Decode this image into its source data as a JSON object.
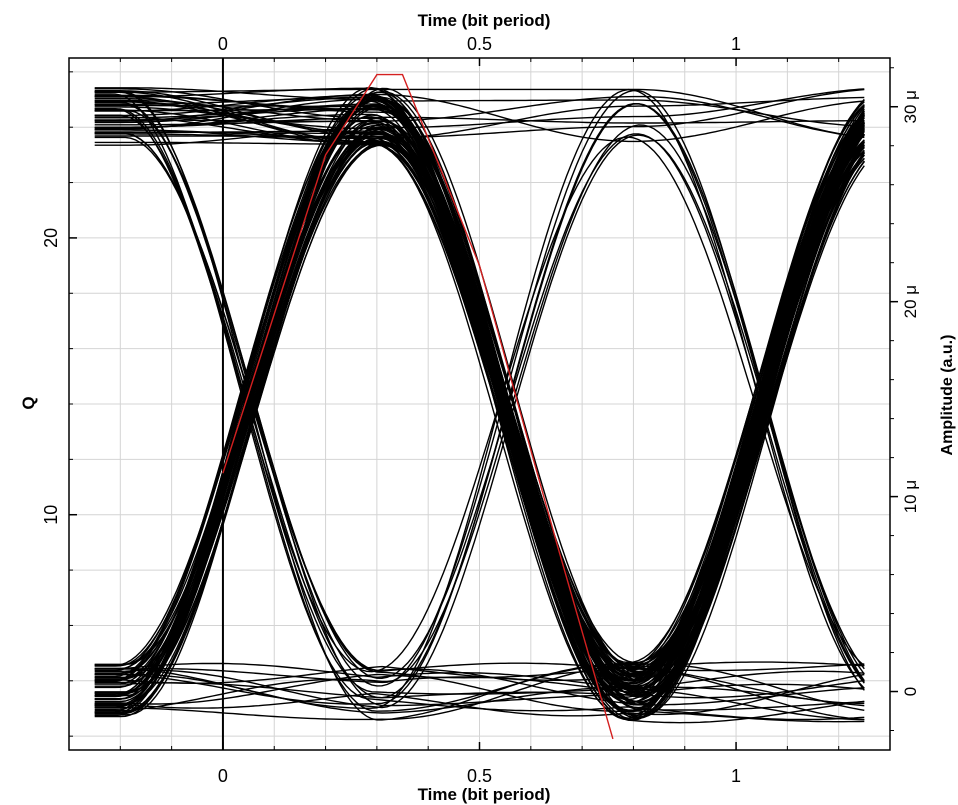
{
  "chart_data": {
    "type": "line",
    "title": "",
    "xlabel_bottom": "Time (bit period)",
    "xlabel_top": "Time (bit period)",
    "ylabel_left": "Q",
    "ylabel_right": "Amplitude (a.u.)",
    "xlim": [
      -0.3,
      1.3
    ],
    "ylim_left": [
      1.5,
      26.5
    ],
    "ylim_right": [
      -3.0,
      32.5
    ],
    "x_ticks": [
      {
        "value": 0,
        "label": "0"
      },
      {
        "value": 0.5,
        "label": "0.5"
      },
      {
        "value": 1,
        "label": "1"
      }
    ],
    "y_left_ticks": [
      {
        "value": 10,
        "label": "10"
      },
      {
        "value": 20,
        "label": "20"
      }
    ],
    "y_right_ticks": [
      {
        "value": 0,
        "label": "0"
      },
      {
        "value": 10,
        "label": "10 μ"
      },
      {
        "value": 20,
        "label": "20 μ"
      },
      {
        "value": 30,
        "label": "30 μ"
      }
    ],
    "grid": true,
    "reference_line_x": 0,
    "series": [
      {
        "kind": "eye_traces",
        "color": "#000000",
        "axis": "right",
        "bit_period_points": [
          [
            -0.2,
            0.0
          ],
          [
            -0.1,
            3.2
          ],
          [
            0.0,
            11.5
          ],
          [
            0.1,
            21.5
          ],
          [
            0.2,
            27.8
          ],
          [
            0.3,
            30.5
          ],
          [
            0.4,
            28.5
          ],
          [
            0.5,
            21.5
          ],
          [
            0.6,
            11.5
          ],
          [
            0.7,
            3.2
          ],
          [
            0.8,
            0.0
          ],
          [
            0.9,
            3.2
          ],
          [
            1.0,
            11.5
          ],
          [
            1.1,
            21.5
          ],
          [
            1.2,
            27.8
          ],
          [
            1.25,
            29.5
          ]
        ],
        "one_level_min": 28.0,
        "one_level_max": 31.0,
        "zero_level_min": -1.5,
        "zero_level_max": 1.5
      },
      {
        "kind": "fit_line",
        "color": "#d42020",
        "axis": "left",
        "x": [
          0.0,
          0.2,
          0.3,
          0.35,
          0.5,
          0.65,
          0.76
        ],
        "y": [
          11.5,
          23.0,
          25.9,
          25.9,
          19.0,
          9.0,
          1.9
        ]
      }
    ]
  }
}
